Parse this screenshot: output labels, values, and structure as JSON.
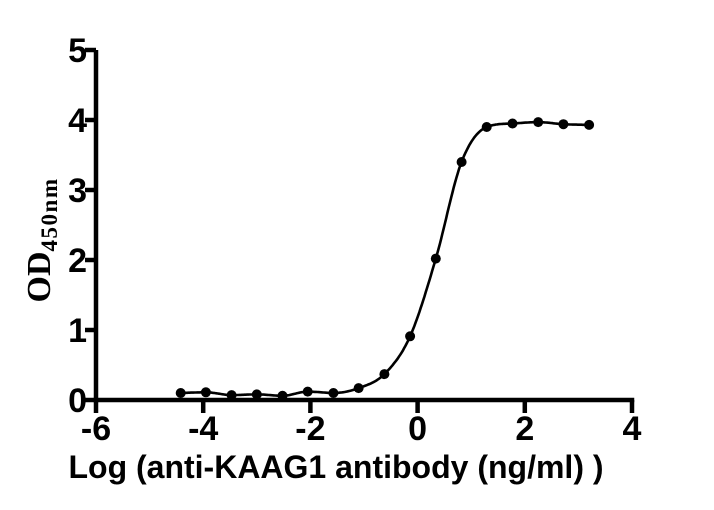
{
  "figure": {
    "background": "#ffffff"
  },
  "chart_data": {
    "type": "scatter",
    "title": "",
    "curve": "4PL sigmoidal dose-response fit through points",
    "xlabel": "Log (anti-KAAG1 antibody (ng/ml) )",
    "ylabel_base": "OD",
    "ylabel_sub": "450nm",
    "xlim": [
      -6,
      4
    ],
    "ylim": [
      0,
      5
    ],
    "x_ticks": [
      -6,
      -4,
      -2,
      0,
      2,
      4
    ],
    "y_ticks": [
      0,
      1,
      2,
      3,
      4,
      5
    ],
    "grid": false,
    "legend": false,
    "colors": {
      "axis": "#000000",
      "marker": "#000000",
      "curve": "#000000",
      "background": "#ffffff"
    },
    "series": [
      {
        "name": "anti-KAAG1 antibody",
        "marker": "filled-circle",
        "points": [
          {
            "x": -4.42,
            "y": 0.1
          },
          {
            "x": -3.95,
            "y": 0.11
          },
          {
            "x": -3.47,
            "y": 0.07
          },
          {
            "x": -3.0,
            "y": 0.08
          },
          {
            "x": -2.52,
            "y": 0.06
          },
          {
            "x": -2.05,
            "y": 0.12
          },
          {
            "x": -1.57,
            "y": 0.1
          },
          {
            "x": -1.1,
            "y": 0.17
          },
          {
            "x": -0.62,
            "y": 0.37
          },
          {
            "x": -0.14,
            "y": 0.91
          },
          {
            "x": 0.34,
            "y": 2.02
          },
          {
            "x": 0.82,
            "y": 3.4
          },
          {
            "x": 1.29,
            "y": 3.9
          },
          {
            "x": 1.77,
            "y": 3.95
          },
          {
            "x": 2.25,
            "y": 3.97
          },
          {
            "x": 2.72,
            "y": 3.94
          },
          {
            "x": 3.2,
            "y": 3.93
          }
        ]
      }
    ]
  }
}
